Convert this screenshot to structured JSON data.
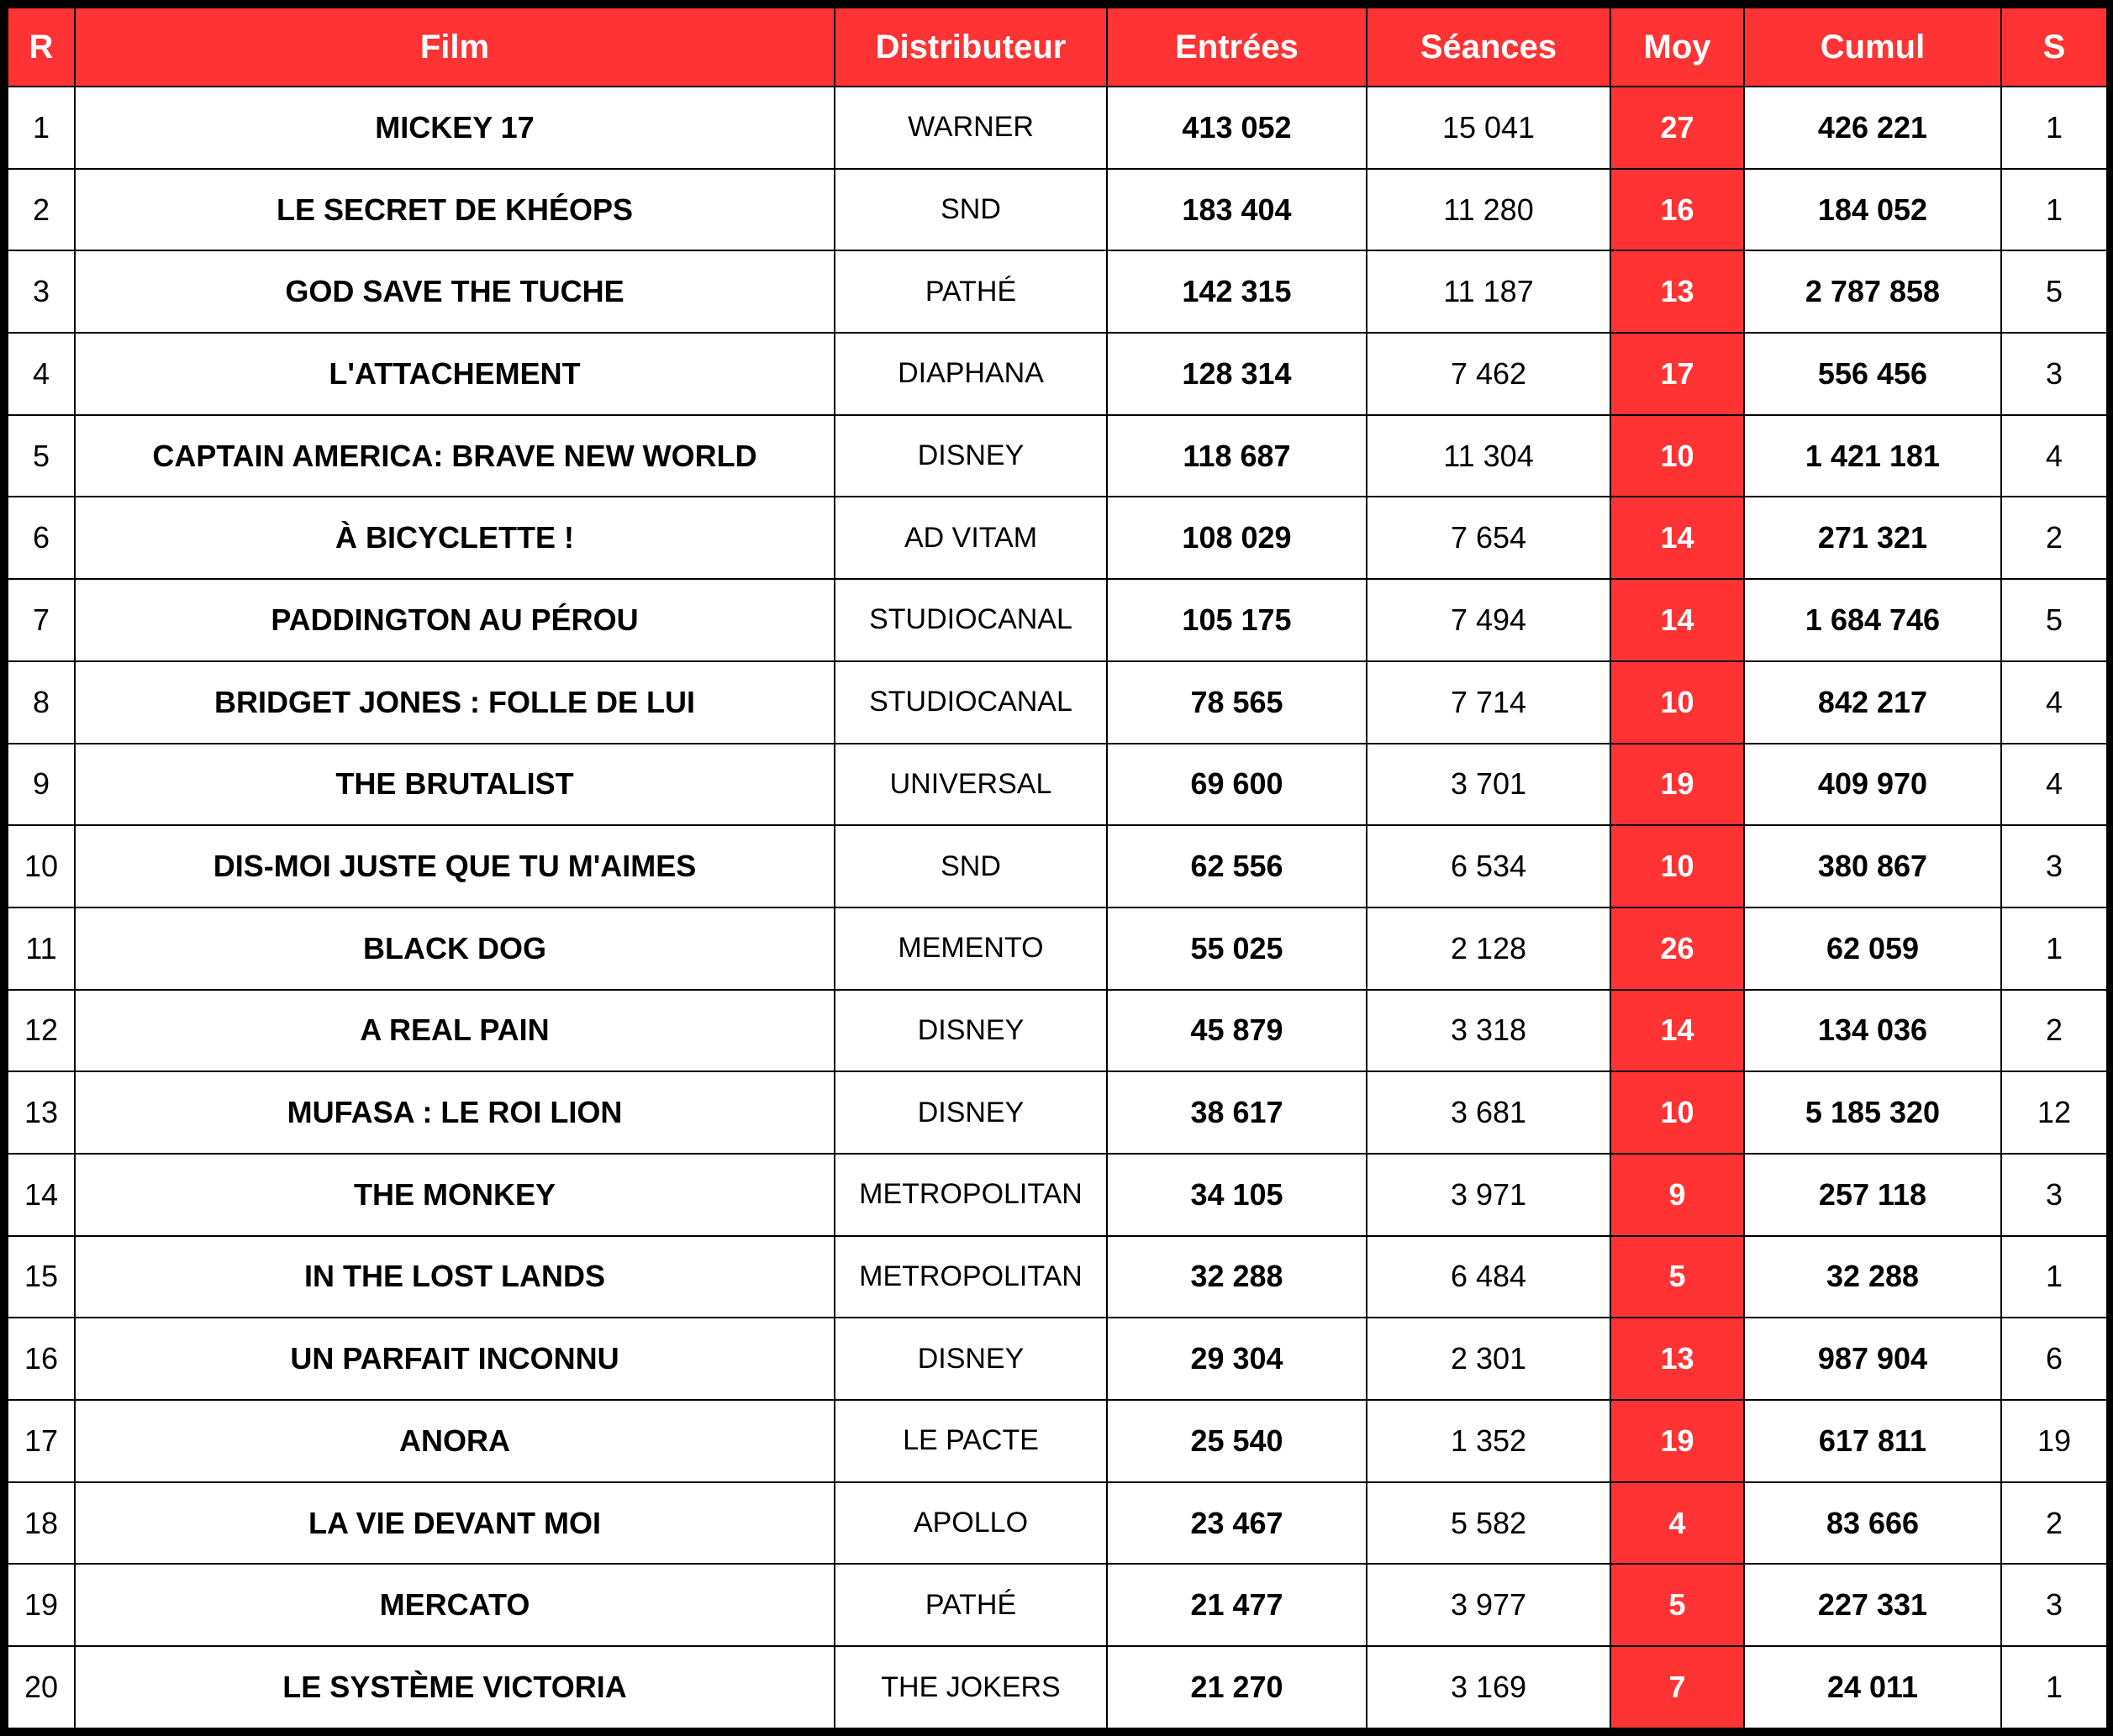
{
  "table": {
    "header": [
      "R",
      "Film",
      "Distributeur",
      "Entrées",
      "Séances",
      "Moy",
      "Cumul",
      "S"
    ],
    "rows": [
      [
        "1",
        "MICKEY 17",
        "WARNER",
        "413 052",
        "15 041",
        "27",
        "426 221",
        "1"
      ],
      [
        "2",
        "LE SECRET DE KHÉOPS",
        "SND",
        "183 404",
        "11 280",
        "16",
        "184 052",
        "1"
      ],
      [
        "3",
        "GOD SAVE THE TUCHE",
        "PATHÉ",
        "142 315",
        "11 187",
        "13",
        "2 787 858",
        "5"
      ],
      [
        "4",
        "L'ATTACHEMENT",
        "DIAPHANA",
        "128 314",
        "7 462",
        "17",
        "556 456",
        "3"
      ],
      [
        "5",
        "CAPTAIN AMERICA: BRAVE NEW WORLD",
        "DISNEY",
        "118 687",
        "11 304",
        "10",
        "1 421 181",
        "4"
      ],
      [
        "6",
        "À BICYCLETTE !",
        "AD VITAM",
        "108 029",
        "7 654",
        "14",
        "271 321",
        "2"
      ],
      [
        "7",
        "PADDINGTON AU PÉROU",
        "STUDIOCANAL",
        "105 175",
        "7 494",
        "14",
        "1 684 746",
        "5"
      ],
      [
        "8",
        "BRIDGET JONES : FOLLE DE LUI",
        "STUDIOCANAL",
        "78 565",
        "7 714",
        "10",
        "842 217",
        "4"
      ],
      [
        "9",
        "THE BRUTALIST",
        "UNIVERSAL",
        "69 600",
        "3 701",
        "19",
        "409 970",
        "4"
      ],
      [
        "10",
        "DIS-MOI JUSTE QUE TU M'AIMES",
        "SND",
        "62 556",
        "6 534",
        "10",
        "380 867",
        "3"
      ],
      [
        "11",
        "BLACK DOG",
        "MEMENTO",
        "55 025",
        "2 128",
        "26",
        "62 059",
        "1"
      ],
      [
        "12",
        "A REAL PAIN",
        "DISNEY",
        "45 879",
        "3 318",
        "14",
        "134 036",
        "2"
      ],
      [
        "13",
        "MUFASA : LE ROI LION",
        "DISNEY",
        "38 617",
        "3 681",
        "10",
        "5 185 320",
        "12"
      ],
      [
        "14",
        "THE MONKEY",
        "METROPOLITAN",
        "34 105",
        "3 971",
        "9",
        "257 118",
        "3"
      ],
      [
        "15",
        "IN THE LOST LANDS",
        "METROPOLITAN",
        "32 288",
        "6 484",
        "5",
        "32 288",
        "1"
      ],
      [
        "16",
        "UN PARFAIT INCONNU",
        "DISNEY",
        "29 304",
        "2 301",
        "13",
        "987 904",
        "6"
      ],
      [
        "17",
        "ANORA",
        "LE PACTE",
        "25 540",
        "1 352",
        "19",
        "617 811",
        "19"
      ],
      [
        "18",
        "LA VIE DEVANT MOI",
        "APOLLO",
        "23 467",
        "5 582",
        "4",
        "83 666",
        "2"
      ],
      [
        "19",
        "MERCATO",
        "PATHÉ",
        "21 477",
        "3 977",
        "5",
        "227 331",
        "3"
      ],
      [
        "20",
        "LE SYSTÈME VICTORIA",
        "THE JOKERS",
        "21 270",
        "3 169",
        "7",
        "24 011",
        "1"
      ]
    ]
  }
}
